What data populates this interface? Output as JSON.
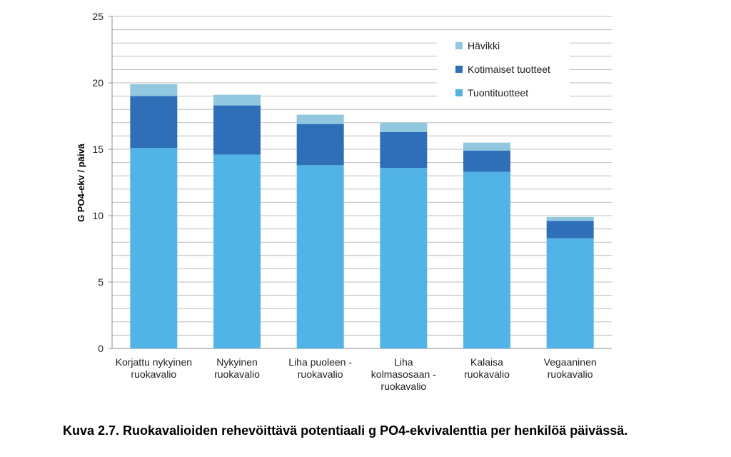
{
  "chart_data": {
    "type": "bar",
    "stacked": true,
    "categories": [
      [
        "Korjattu nykyinen",
        "ruokavalio"
      ],
      [
        "Nykyinen",
        "ruokavalio"
      ],
      [
        "Liha puoleen -",
        "ruokavalio"
      ],
      [
        "Liha",
        "kolmasosaan -",
        "ruokavalio"
      ],
      [
        "Kalaisa",
        "ruokavalio"
      ],
      [
        "Vegaaninen",
        "ruokavalio"
      ]
    ],
    "series": [
      {
        "name": "Tuontituotteet",
        "color": "#52b3e6",
        "values": [
          15.1,
          14.6,
          13.8,
          13.6,
          13.3,
          8.3
        ]
      },
      {
        "name": "Kotimaiset tuotteet",
        "color": "#2e6fb8",
        "values": [
          3.9,
          3.7,
          3.1,
          2.7,
          1.6,
          1.3
        ]
      },
      {
        "name": "Hävikki",
        "color": "#92c8df",
        "values": [
          0.9,
          0.8,
          0.7,
          0.7,
          0.6,
          0.3
        ]
      }
    ],
    "ylabel": "G PO4-ekv / päivä",
    "xlabel": "",
    "ylim": [
      0,
      25
    ],
    "yticks": [
      0,
      5,
      10,
      15,
      20,
      25
    ],
    "grid": true,
    "legend_position": "top-right",
    "legend_order": [
      "Hävikki",
      "Kotimaiset tuotteet",
      "Tuontituotteet"
    ]
  },
  "caption": "Kuva 2.7. Ruokavalioiden rehevöittävä potentiaali g PO4-ekvivalenttia per henkilöä päivässä."
}
